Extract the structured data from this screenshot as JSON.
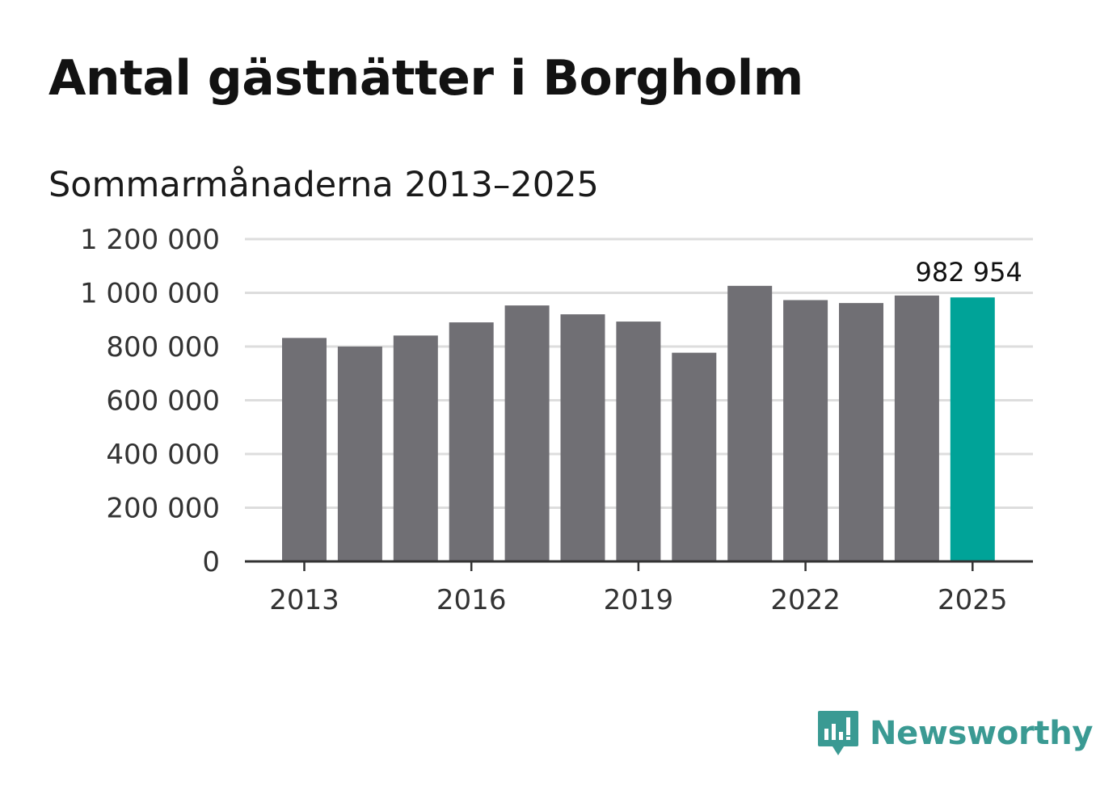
{
  "chart_data": {
    "type": "bar",
    "title": "Antal gästnätter i Borgholm",
    "subtitle": "Sommarmånaderna 2013–2025",
    "categories": [
      "2013",
      "2014",
      "2015",
      "2016",
      "2017",
      "2018",
      "2019",
      "2020",
      "2021",
      "2022",
      "2023",
      "2024",
      "2025"
    ],
    "values": [
      832000,
      800000,
      841000,
      890000,
      953000,
      920000,
      893000,
      777000,
      1026000,
      973000,
      962000,
      990000,
      982954
    ],
    "ylim": [
      0,
      1200000
    ],
    "yticks": [
      0,
      200000,
      400000,
      600000,
      800000,
      1000000,
      1200000
    ],
    "ytick_labels": [
      "0",
      "200 000",
      "400 000",
      "600 000",
      "800 000",
      "1 000 000",
      "1 200 000"
    ],
    "xtick_labels": [
      "2013",
      "2016",
      "2019",
      "2022",
      "2025"
    ],
    "xtick_indices": [
      0,
      3,
      6,
      9,
      12
    ],
    "highlight_index": 12,
    "highlight_label": "982 954",
    "grid": true,
    "colors": {
      "bar": "#706f74",
      "highlight": "#00a398",
      "grid": "#dddddd",
      "axis": "#333333"
    }
  },
  "brand": {
    "name": "Newsworthy",
    "logo_icon": "newsworthy-bar-chart-icon",
    "color": "#3a9a93"
  }
}
